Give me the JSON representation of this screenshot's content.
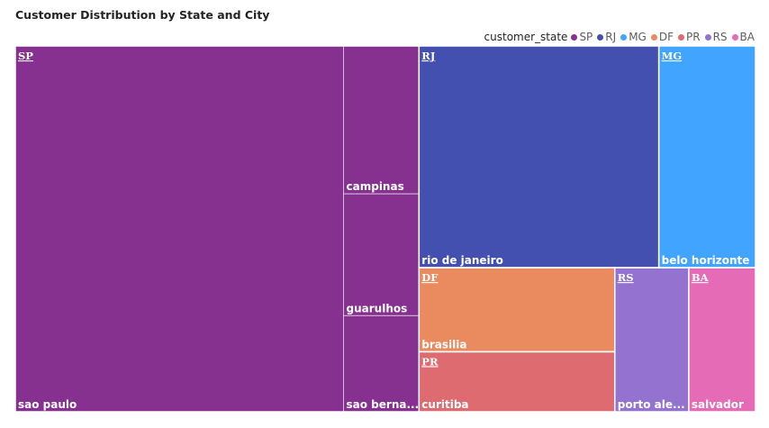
{
  "title": "Customer Distribution by State and City",
  "legend": {
    "title": "customer_state",
    "items": [
      {
        "label": "SP",
        "color": "#86318F"
      },
      {
        "label": "RJ",
        "color": "#4350B0"
      },
      {
        "label": "MG",
        "color": "#41A4FF"
      },
      {
        "label": "DF",
        "color": "#EA8A5F"
      },
      {
        "label": "PR",
        "color": "#DD6B70"
      },
      {
        "label": "RS",
        "color": "#9373CF"
      },
      {
        "label": "BA",
        "color": "#E66BB7"
      }
    ]
  },
  "chart_data": {
    "type": "treemap",
    "title": "Customer Distribution by State and City",
    "legend_title": "customer_state",
    "legend_position": "top-right",
    "states": [
      {
        "state": "SP",
        "color": "#86318F",
        "cities": [
          {
            "label": "sao paulo",
            "value": 15540
          },
          {
            "label": "campinas",
            "value": 1444
          },
          {
            "label": "guarulhos",
            "value": 1189
          },
          {
            "label": "sao berna...",
            "value": 938
          }
        ]
      },
      {
        "state": "RJ",
        "color": "#4350B0",
        "cities": [
          {
            "label": "rio de janeiro",
            "value": 6882
          }
        ]
      },
      {
        "state": "MG",
        "color": "#41A4FF",
        "cities": [
          {
            "label": "belo horizonte",
            "value": 2773
          }
        ]
      },
      {
        "state": "DF",
        "color": "#EA8A5F",
        "cities": [
          {
            "label": "brasilia",
            "value": 2131
          }
        ]
      },
      {
        "state": "PR",
        "color": "#DD6B70",
        "cities": [
          {
            "label": "curitiba",
            "value": 1521
          }
        ]
      },
      {
        "state": "RS",
        "color": "#9373CF",
        "cities": [
          {
            "label": "porto ale...",
            "value": 1379
          }
        ]
      },
      {
        "state": "BA",
        "color": "#E66BB7",
        "cities": [
          {
            "label": "salvador",
            "value": 1245
          }
        ]
      }
    ]
  }
}
